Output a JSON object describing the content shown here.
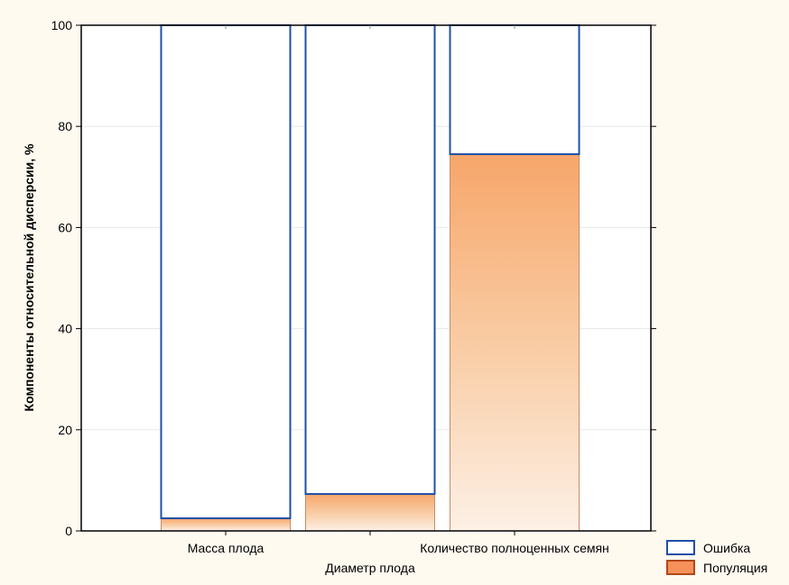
{
  "chart_data": {
    "type": "bar",
    "stacked": true,
    "ylabel": "Компоненты относительной дисперсии, %",
    "xlabel": "",
    "ylim": [
      0,
      100
    ],
    "y_ticks": [
      0,
      20,
      40,
      60,
      80,
      100
    ],
    "grid": true,
    "legend_position": "bottom-right",
    "categories": [
      {
        "label": "Масса плода",
        "label_row": 1
      },
      {
        "label": "Диаметр плода",
        "label_row": 2
      },
      {
        "label": "Количество полноценных семян",
        "label_row": 1
      }
    ],
    "series": [
      {
        "name": "Популяция",
        "values": [
          2.5,
          7.3,
          74.5
        ],
        "color": "#f7a15c",
        "style": "gradient"
      },
      {
        "name": "Ошибка",
        "values": [
          97.5,
          92.7,
          25.5
        ],
        "color": "#ffffff",
        "border": "#1f4fa8"
      }
    ],
    "legend": [
      {
        "name": "Ошибка",
        "fill": "#ffffff",
        "border": "#1f4fa8"
      },
      {
        "name": "Популяция",
        "fill": "#f7915a",
        "border": "#b0481a"
      }
    ]
  }
}
